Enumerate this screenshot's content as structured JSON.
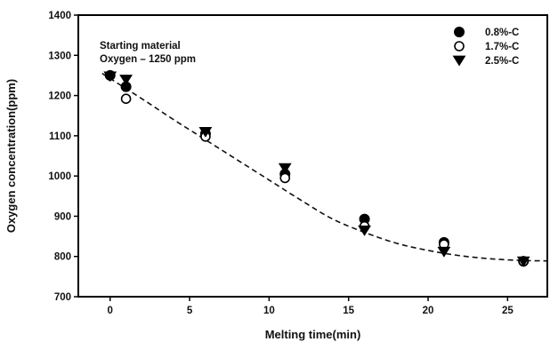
{
  "chart_data": {
    "type": "scatter",
    "xlabel": "Melting time(min)",
    "ylabel": "Oxygen concentration(ppm)",
    "xlim": [
      -2,
      27.5
    ],
    "ylim": [
      700,
      1400
    ],
    "xticks": [
      0,
      5,
      10,
      15,
      20,
      25
    ],
    "yticks": [
      700,
      800,
      900,
      1000,
      1100,
      1200,
      1300,
      1400
    ],
    "xtick_labels": [
      "0",
      "5",
      "10",
      "15",
      "20",
      "25"
    ],
    "ytick_labels": [
      "700",
      "800",
      "900",
      "1000",
      "1100",
      "1200",
      "1300",
      "1400"
    ],
    "grid": false,
    "legend_position": "top-right",
    "annotation": [
      "Starting material",
      "Oxygen – 1250 ppm"
    ],
    "series": [
      {
        "name": "0.8%-C",
        "marker": "filled-circle",
        "color": "#000000",
        "x": [
          0,
          1,
          6,
          11,
          16,
          21,
          26
        ],
        "y": [
          1250,
          1222,
          1105,
          1005,
          893,
          835,
          788
        ]
      },
      {
        "name": "1.7%-C",
        "marker": "open-circle",
        "color": "#000000",
        "x": [
          1,
          6,
          11,
          16,
          21,
          26
        ],
        "y": [
          1192,
          1098,
          995,
          875,
          830,
          788
        ]
      },
      {
        "name": "2.5%-C",
        "marker": "filled-triangle-down",
        "color": "#000000",
        "x": [
          0,
          1,
          6,
          11,
          16,
          21,
          26
        ],
        "y": [
          1248,
          1240,
          1110,
          1020,
          865,
          812,
          788
        ]
      }
    ],
    "trend_line": {
      "style": "dashed",
      "x": [
        -0.5,
        2,
        4,
        6,
        8,
        10,
        12,
        14,
        16,
        18,
        20,
        22,
        24,
        26,
        27.5
      ],
      "y": [
        1255,
        1192,
        1140,
        1090,
        1040,
        990,
        940,
        893,
        860,
        833,
        815,
        802,
        794,
        790,
        789
      ]
    }
  }
}
